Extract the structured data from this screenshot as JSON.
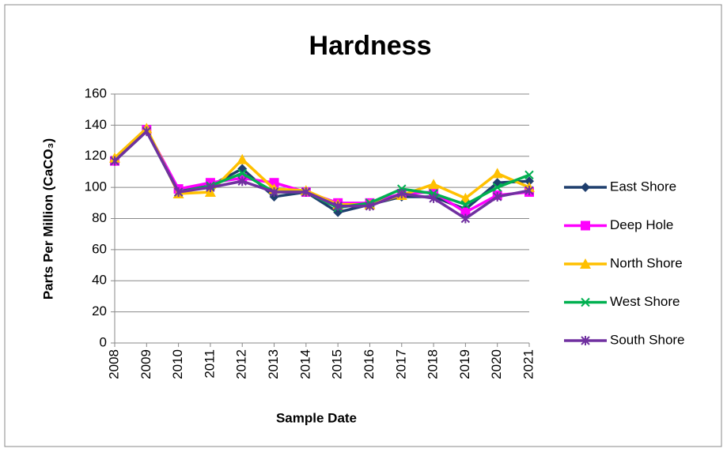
{
  "chart_data": {
    "type": "line",
    "title": "Hardness",
    "x_label": "Sample Date",
    "y_label": "Parts Per Million (CaCO₃)",
    "categories": [
      "2008",
      "2009",
      "2010",
      "2011",
      "2012",
      "2013",
      "2014",
      "2015",
      "2016",
      "2017",
      "2018",
      "2019",
      "2020",
      "2021"
    ],
    "series": [
      {
        "name": "East Shore",
        "color": "#1f3f6e",
        "marker": "diamond",
        "values": [
          117,
          137,
          98,
          101,
          112,
          94,
          97,
          84,
          89,
          94,
          94,
          86,
          103,
          104
        ]
      },
      {
        "name": "Deep Hole",
        "color": "#ff00ff",
        "marker": "square",
        "values": [
          117,
          137,
          99,
          103,
          106,
          103,
          97,
          90,
          90,
          96,
          97,
          84,
          95,
          97
        ]
      },
      {
        "name": "North Shore",
        "color": "#ffc000",
        "marker": "triangle",
        "values": [
          119,
          138,
          96,
          97,
          118,
          99,
          98,
          89,
          89,
          95,
          102,
          93,
          109,
          100
        ]
      },
      {
        "name": "West Shore",
        "color": "#00b050",
        "marker": "x",
        "values": [
          117,
          136,
          97,
          101,
          109,
          97,
          97,
          87,
          90,
          99,
          96,
          89,
          100,
          108
        ]
      },
      {
        "name": "South Shore",
        "color": "#7030a0",
        "marker": "star",
        "values": [
          117,
          136,
          97,
          100,
          104,
          97,
          97,
          88,
          88,
          96,
          93,
          80,
          94,
          98
        ]
      }
    ],
    "ylim": [
      0,
      160
    ],
    "yticks": [
      0,
      20,
      40,
      60,
      80,
      100,
      120,
      140,
      160
    ],
    "grid": true,
    "legend": "right"
  }
}
